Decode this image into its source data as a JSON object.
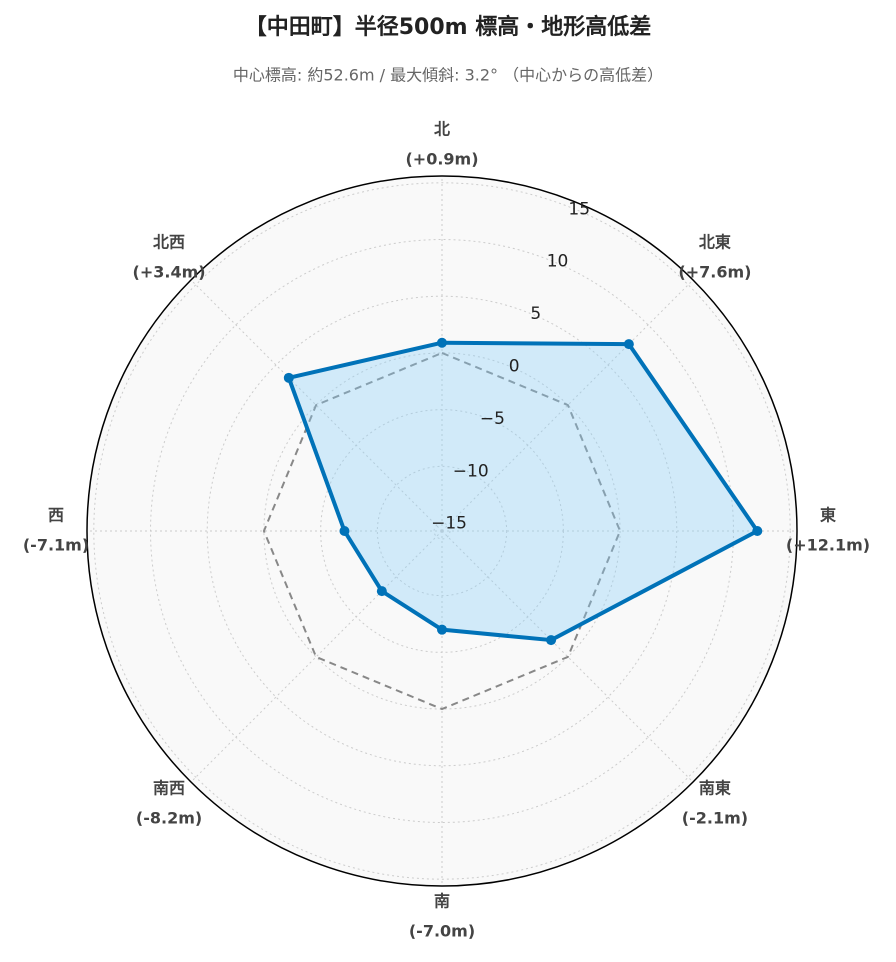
{
  "chart_data": {
    "type": "radar",
    "title": "【中田町】半径500m 標高・地形高低差",
    "subtitle": "中心標高: 約52.6m / 最大傾斜: 3.2° （中心からの高低差）",
    "categories": [
      "北",
      "北東",
      "東",
      "南東",
      "南",
      "南西",
      "西",
      "北西"
    ],
    "series": [
      {
        "color": "#0072b8",
        "fill": "rgba(135,206,250,0.35)",
        "values": [
          0.9,
          7.6,
          12.1,
          -2.1,
          -7.0,
          -8.2,
          -7.1,
          3.4
        ],
        "value_labels": [
          "(+0.9m)",
          "(+7.6m)",
          "(+12.1m)",
          "(-2.1m)",
          "(-7.0m)",
          "(-8.2m)",
          "(-7.1m)",
          "(+3.4m)"
        ]
      }
    ],
    "reference_line": {
      "value": 0,
      "color": "#888888"
    },
    "ylim": [
      -15.7,
      15.6
    ],
    "yticks": [
      {
        "value": -15,
        "label": "−15"
      },
      {
        "value": -10,
        "label": "−10"
      },
      {
        "value": -5,
        "label": "−5"
      },
      0,
      5,
      10,
      15
    ],
    "grid": true
  }
}
